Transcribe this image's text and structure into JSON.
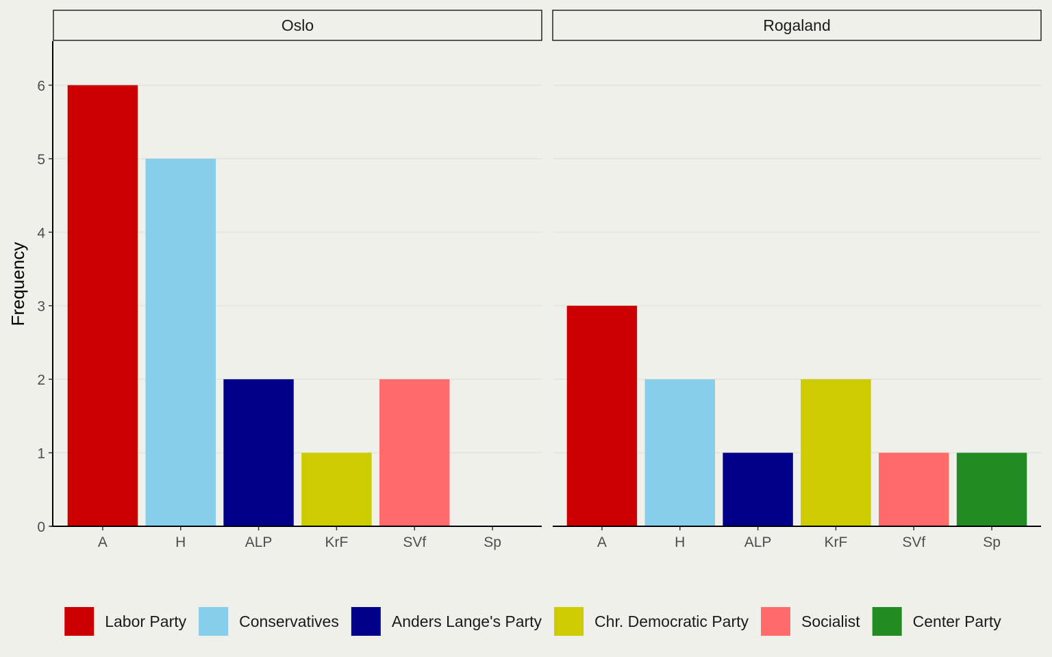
{
  "chart_data": {
    "type": "bar",
    "ylabel": "Frequency",
    "xlabel": "",
    "ylim": [
      0,
      6.6
    ],
    "y_ticks": [
      0,
      1,
      2,
      3,
      4,
      5,
      6
    ],
    "categories": [
      "A",
      "H",
      "ALP",
      "KrF",
      "SVf",
      "Sp"
    ],
    "legend_position": "bottom",
    "grid": "horizontal major lines",
    "legend": [
      {
        "key": "A",
        "label": "Labor Party",
        "color": "#cc0000"
      },
      {
        "key": "H",
        "label": "Conservatives",
        "color": "#87ceeb"
      },
      {
        "key": "ALP",
        "label": "Anders Lange's Party",
        "color": "#00008b"
      },
      {
        "key": "KrF",
        "label": "Chr. Democratic Party",
        "color": "#cccc00"
      },
      {
        "key": "SVf",
        "label": "Socialist",
        "color": "#ff6a6a"
      },
      {
        "key": "Sp",
        "label": "Center Party",
        "color": "#228b22"
      }
    ],
    "panels": [
      {
        "title": "Oslo",
        "values": [
          6,
          5,
          2,
          1,
          2,
          0
        ]
      },
      {
        "title": "Rogaland",
        "values": [
          3,
          2,
          1,
          2,
          1,
          1
        ]
      }
    ]
  }
}
